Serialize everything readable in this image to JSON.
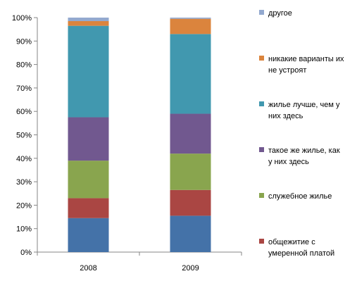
{
  "chart_data": {
    "type": "bar",
    "stacked": true,
    "percent": true,
    "categories": [
      "2008",
      "2009"
    ],
    "ylim": [
      0,
      100
    ],
    "y_ticks": [
      "0%",
      "10%",
      "20%",
      "30%",
      "40%",
      "50%",
      "60%",
      "70%",
      "80%",
      "90%",
      "100%"
    ],
    "grid": false,
    "legend_position": "right",
    "series": [
      {
        "name": "общежитие с умеренной платой",
        "color": "#4472a8",
        "values": [
          14.5,
          15.5
        ]
      },
      {
        "name": "",
        "color": "#aa4643",
        "values": [
          8.5,
          11
        ]
      },
      {
        "name": "служебное жилье",
        "color": "#89a54e",
        "values": [
          16,
          15.5
        ]
      },
      {
        "name": "такое же жилье, как у них здесь",
        "color": "#71588f",
        "values": [
          18.5,
          17
        ]
      },
      {
        "name": "жилье лучше, чем у них здесь",
        "color": "#4198af",
        "values": [
          39,
          34
        ]
      },
      {
        "name": "никакие варианты их не устроят",
        "color": "#db843d",
        "values": [
          2,
          6.5
        ]
      },
      {
        "name": "другое",
        "color": "#93a9cf",
        "values": [
          1.5,
          0.5
        ]
      }
    ],
    "legend_lines": [
      [
        "другое"
      ],
      [
        "никакие варианты их",
        "не устроят"
      ],
      [
        "жилье лучше, чем у",
        "них здесь"
      ],
      [
        "такое же жилье, как",
        "у них здесь"
      ],
      [
        "служебное жилье"
      ],
      [
        "общежитие с",
        "умеренной платой"
      ]
    ]
  }
}
